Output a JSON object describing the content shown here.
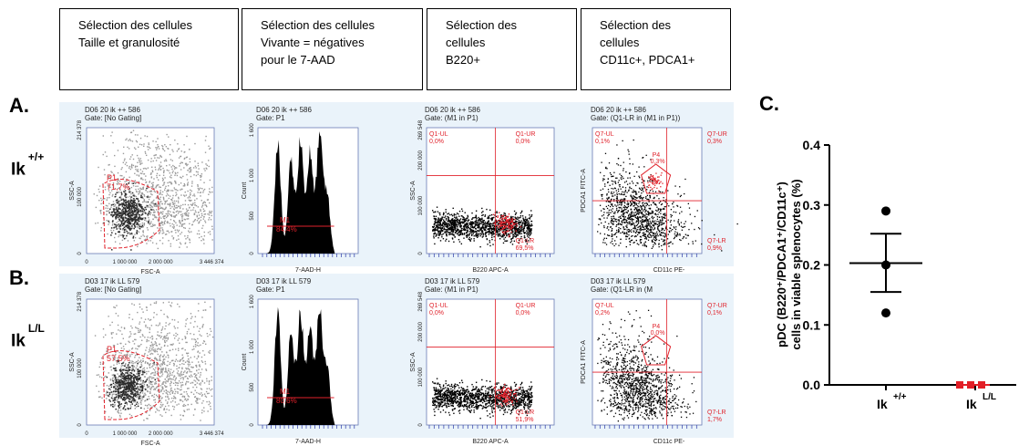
{
  "headers": [
    {
      "lines": [
        "Sélection des cellules",
        "Taille et granulosité"
      ]
    },
    {
      "lines": [
        "Sélection des cellules",
        "Vivante = négatives",
        "pour le 7-AAD"
      ]
    },
    {
      "lines": [
        "Sélection des",
        "cellules",
        "B220+"
      ]
    },
    {
      "lines": [
        "Sélection des",
        "cellules",
        "CD11c+, PDCA1+"
      ]
    }
  ],
  "section_labels": {
    "a": "A.",
    "b": "B.",
    "c": "C."
  },
  "rows": [
    {
      "genotype": "Ik",
      "genotype_sup": "+/+",
      "panels": [
        {
          "sample": "D06 20 ik ++ 586",
          "gate": "Gate: [No Gating]",
          "xlabel": "FSC-A",
          "ylabel": "SSC-A",
          "gate_name": "P1",
          "gate_pct": "71,7%",
          "xticks": [
            "0",
            "1 000 000",
            "2 000 000",
            "3 446 374"
          ],
          "yticks": [
            "0",
            "100 000",
            "214 378"
          ]
        },
        {
          "sample": "D06 20 ik ++ 586",
          "gate": "Gate: P1",
          "xlabel": "7-AAD-H",
          "ylabel": "Count",
          "gate_name": "M1",
          "gate_pct": "84,4%",
          "yticks": [
            "0",
            "500",
            "1 000",
            "1 600"
          ]
        },
        {
          "sample": "D06 20 ik ++ 586",
          "gate": "Gate: (M1 in P1)",
          "xlabel": "B220 APC-A",
          "ylabel": "SSC-A",
          "quads": [
            "Q1-UL",
            "0,0%",
            "Q1-UR",
            "0,0%",
            "Q1-LR",
            "69,5%"
          ],
          "yticks": [
            "0",
            "100 000",
            "200 000",
            "269 548"
          ]
        },
        {
          "sample": "D06 20 ik ++ 586",
          "gate": "Gate: (Q1-LR in (M1 in P1))",
          "xlabel": "CD11c PE-",
          "ylabel": "PDCA1 FITC-A",
          "quads": [
            "Q7-UL",
            "0,1%",
            "Q7-UR",
            "0,3%",
            "Q7-LR",
            "0,9%"
          ],
          "gate_name": "P4",
          "gate_pct": "0,3%"
        }
      ]
    },
    {
      "genotype": "Ik",
      "genotype_sup": "L/L",
      "panels": [
        {
          "sample": "D03 17 ik LL 579",
          "gate": "Gate: [No Gating]",
          "xlabel": "FSC-A",
          "ylabel": "SSC-A",
          "gate_name": "P1",
          "gate_pct": "57,5%",
          "xticks": [
            "0",
            "1 000 000",
            "2 000 000",
            "3 446 374"
          ],
          "yticks": [
            "0",
            "100 000",
            "214 378"
          ]
        },
        {
          "sample": "D03 17 ik LL 579",
          "gate": "Gate: P1",
          "xlabel": "7-AAD-H",
          "ylabel": "Count",
          "gate_name": "M1",
          "gate_pct": "80,6%",
          "yticks": [
            "0",
            "500",
            "1 000",
            "1 600"
          ]
        },
        {
          "sample": "D03 17 ik LL 579",
          "gate": "Gate: (M1 in P1)",
          "xlabel": "B220 APC-A",
          "ylabel": "SSC-A",
          "quads": [
            "Q1-UL",
            "0,0%",
            "Q1-UR",
            "0,0%",
            "Q1-LR",
            "51,9%"
          ],
          "yticks": [
            "0",
            "100 000",
            "200 000",
            "269 548"
          ]
        },
        {
          "sample": "D03 17 ik LL 579",
          "gate": "Gate: (Q1-LR in (M",
          "xlabel": "CD11c PE-",
          "ylabel": "PDCA1 FITC-A",
          "quads": [
            "Q7-UL",
            "0,2%",
            "Q7-UR",
            "0,1%",
            "Q7-LR",
            "1,7%"
          ],
          "gate_name": "P4",
          "gate_pct": "0,0%"
        }
      ]
    }
  ],
  "chart_data": {
    "type": "scatter",
    "ylabel_line1": "pDC (B220⁺/PDCA1⁺/CD11c⁺)",
    "ylabel_line2": "cells in viable splenocytes (%)",
    "ylim": [
      0,
      0.4
    ],
    "yticks": [
      "0.0",
      "0.1",
      "0.2",
      "0.3",
      "0.4"
    ],
    "categories": [
      {
        "label": "Ik",
        "sup": "+/+"
      },
      {
        "label": "Ik",
        "sup": "L/L"
      }
    ],
    "series": [
      {
        "points": [
          0.29,
          0.2,
          0.12
        ],
        "mean": 0.203,
        "sem_low": 0.155,
        "sem_high": 0.252,
        "color": "#000000"
      },
      {
        "points": [
          0.0,
          0.0,
          0.0
        ],
        "mean": 0.0,
        "color": "#e21e26"
      }
    ]
  },
  "colors": {
    "panel_bg": "#eaf3fa",
    "gate": "#e0222b",
    "axis_ticks": "#2b3aa8",
    "dots": "#000000"
  }
}
